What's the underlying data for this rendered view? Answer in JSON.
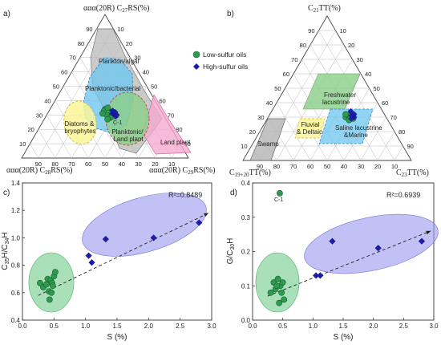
{
  "chart_data": [
    {
      "panel": "a)",
      "type": "ternary",
      "axes": {
        "top": "ααα(20R) C27RS(%)",
        "left": "ααα(20R) C28RS(%)",
        "right": "ααα(20R) C29RS(%)"
      },
      "ticks": [
        "10",
        "20",
        "30",
        "40",
        "50",
        "60",
        "70",
        "80",
        "90"
      ],
      "regions": [
        {
          "label": "Plankton/algal",
          "color": "#b9b9b9"
        },
        {
          "label": "Planktonic/bacterial",
          "color": "#6ec6f0"
        },
        {
          "label": "Planktonic/ Land plant",
          "color": "#8bd08b"
        },
        {
          "label": "Land plant",
          "color": "#f7a8cf"
        },
        {
          "label": "Diatoms & bryophytes",
          "color": "#fbf59a"
        }
      ],
      "annotation": "C-1",
      "legend": [
        {
          "name": "Low-sulfur oils",
          "color": "#2e9a4f",
          "marker": "circle"
        },
        {
          "name": "High-sulfur oils",
          "color": "#1c1cb0",
          "marker": "diamond"
        }
      ],
      "legend_position": "right",
      "points_low": [
        [
          0.34,
          0.33,
          0.33
        ],
        [
          0.3,
          0.32,
          0.38
        ],
        [
          0.32,
          0.3,
          0.38
        ],
        [
          0.3,
          0.34,
          0.36
        ],
        [
          0.28,
          0.33,
          0.39
        ],
        [
          0.33,
          0.34,
          0.33
        ],
        [
          0.31,
          0.36,
          0.33
        ],
        [
          0.29,
          0.31,
          0.4
        ],
        [
          0.35,
          0.31,
          0.34
        ],
        [
          0.27,
          0.35,
          0.38
        ]
      ],
      "points_high": [
        [
          0.31,
          0.3,
          0.39
        ],
        [
          0.33,
          0.29,
          0.38
        ],
        [
          0.29,
          0.29,
          0.42
        ],
        [
          0.3,
          0.28,
          0.42
        ],
        [
          0.32,
          0.28,
          0.4
        ]
      ]
    },
    {
      "panel": "b)",
      "type": "ternary",
      "axes": {
        "top": "C21TT(%)",
        "left": "C19+20TT(%)",
        "right": "C23TT(%)"
      },
      "ticks": [
        "10",
        "20",
        "30",
        "40",
        "50",
        "60",
        "70",
        "80",
        "90"
      ],
      "regions": [
        {
          "label": "Freshwater lacustrine",
          "color": "#8bd08b"
        },
        {
          "label": "Fluvial & Deltaic",
          "color": "#fbf59a"
        },
        {
          "label": "Saline lacustrine &Marine",
          "color": "#6ec6f0"
        },
        {
          "label": "Swamp",
          "color": "#b9b9b9"
        }
      ],
      "points_low": [
        [
          0.3,
          0.24,
          0.46
        ],
        [
          0.29,
          0.22,
          0.49
        ],
        [
          0.31,
          0.22,
          0.47
        ],
        [
          0.28,
          0.23,
          0.49
        ],
        [
          0.3,
          0.21,
          0.49
        ],
        [
          0.32,
          0.23,
          0.45
        ],
        [
          0.29,
          0.2,
          0.51
        ]
      ],
      "points_high": [
        [
          0.3,
          0.19,
          0.51
        ],
        [
          0.32,
          0.18,
          0.5
        ],
        [
          0.34,
          0.19,
          0.47
        ],
        [
          0.31,
          0.2,
          0.49
        ],
        [
          0.29,
          0.21,
          0.5
        ]
      ]
    },
    {
      "panel": "c)",
      "type": "scatter",
      "xlabel": "S (%)",
      "ylabel": "C35H/C34H",
      "xlim": [
        0,
        3.0
      ],
      "ylim": [
        0.4,
        1.4
      ],
      "xticks": [
        "0.0",
        "0.5",
        "1.0",
        "1.5",
        "2.0",
        "2.5",
        "3.0"
      ],
      "yticks": [
        "0.4",
        "0.6",
        "0.8",
        "1.0",
        "1.2",
        "1.4"
      ],
      "r2": "R²=0.8489",
      "series": [
        {
          "marker": "circle",
          "color": "#2e9a4f",
          "points": [
            [
              0.28,
              0.67
            ],
            [
              0.33,
              0.64
            ],
            [
              0.38,
              0.66
            ],
            [
              0.4,
              0.7
            ],
            [
              0.42,
              0.61
            ],
            [
              0.43,
              0.55
            ],
            [
              0.45,
              0.69
            ],
            [
              0.47,
              0.67
            ],
            [
              0.48,
              0.65
            ],
            [
              0.5,
              0.72
            ],
            [
              0.52,
              0.75
            ],
            [
              0.46,
              0.6
            ]
          ]
        },
        {
          "marker": "diamond",
          "color": "#1c1cb0",
          "points": [
            [
              1.05,
              0.87
            ],
            [
              1.1,
              0.82
            ],
            [
              1.32,
              0.99
            ],
            [
              2.08,
              1.0
            ],
            [
              2.8,
              1.11
            ]
          ]
        }
      ],
      "trend": [
        [
          0.25,
          0.58
        ],
        [
          2.95,
          1.18
        ]
      ],
      "ellipses": [
        {
          "color": "#7ccf93"
        },
        {
          "color": "#9898f0"
        }
      ]
    },
    {
      "panel": "d)",
      "type": "scatter",
      "xlabel": "S (%)",
      "ylabel": "G/C30H",
      "xlim": [
        0,
        3.0
      ],
      "ylim": [
        0.0,
        0.4
      ],
      "xticks": [
        "0.0",
        "0.5",
        "1.0",
        "1.5",
        "2.0",
        "2.5",
        "3.0"
      ],
      "yticks": [
        "0.0",
        "0.1",
        "0.2",
        "0.3",
        "0.4"
      ],
      "r2": "R²=0.6939",
      "annotation": "C-1",
      "series": [
        {
          "marker": "circle",
          "color": "#2e9a4f",
          "points": [
            [
              0.45,
              0.37
            ],
            [
              0.3,
              0.08
            ],
            [
              0.35,
              0.11
            ],
            [
              0.38,
              0.09
            ],
            [
              0.42,
              0.12
            ],
            [
              0.44,
              0.05
            ],
            [
              0.46,
              0.1
            ],
            [
              0.48,
              0.08
            ],
            [
              0.5,
              0.11
            ],
            [
              0.52,
              0.06
            ],
            [
              0.4,
              0.1
            ]
          ]
        },
        {
          "marker": "diamond",
          "color": "#1c1cb0",
          "points": [
            [
              1.05,
              0.13
            ],
            [
              1.12,
              0.13
            ],
            [
              1.32,
              0.23
            ],
            [
              2.08,
              0.21
            ],
            [
              2.8,
              0.23
            ]
          ]
        }
      ],
      "trend": [
        [
          0.25,
          0.07
        ],
        [
          2.95,
          0.26
        ]
      ],
      "ellipses": [
        {
          "color": "#7ccf93"
        },
        {
          "color": "#9898f0"
        }
      ]
    }
  ]
}
